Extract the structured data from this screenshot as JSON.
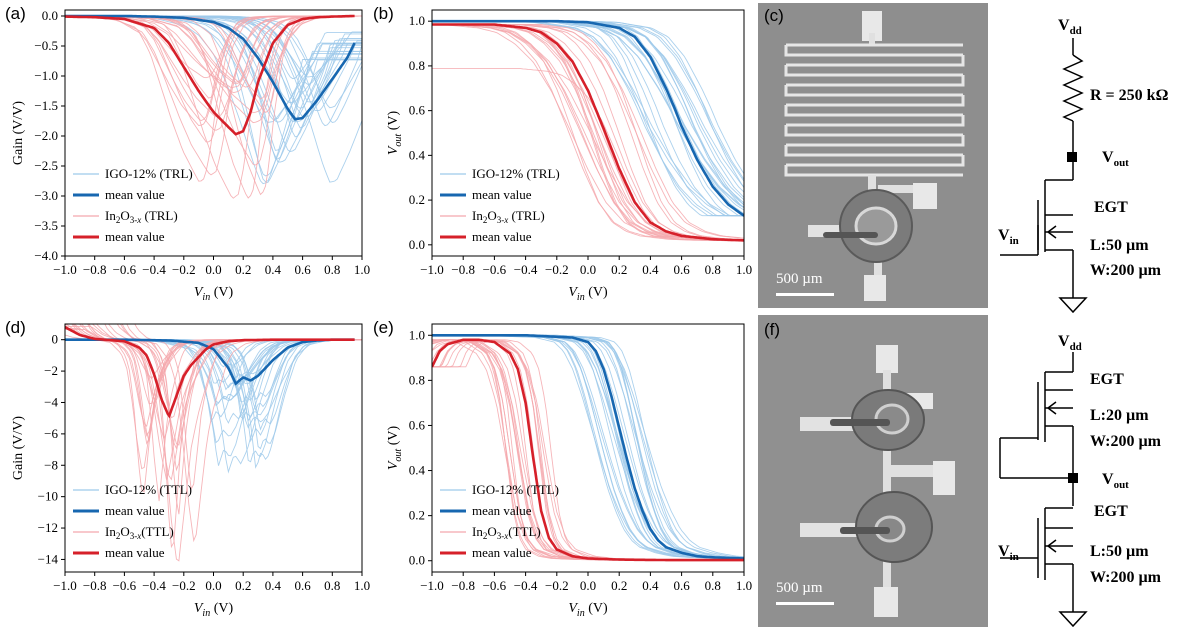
{
  "colors": {
    "trl_blue_thin": "#9ec9ea",
    "blue_mean": "#1767b0",
    "red_thin": "#f4a8ad",
    "red_mean": "#d6202a"
  },
  "panels": {
    "a": {
      "label": "(a)"
    },
    "b": {
      "label": "(b)"
    },
    "c": {
      "label": "(c)",
      "scale": "500 µm"
    },
    "d": {
      "label": "(d)"
    },
    "e": {
      "label": "(e)"
    },
    "f": {
      "label": "(f)",
      "scale": "500 µm"
    }
  },
  "circuit_c": {
    "vdd": "V",
    "vdd_sub": "dd",
    "resistor": "R = 250 kΩ",
    "vout": "V",
    "vout_sub": "out",
    "egt": "EGT",
    "vin": "V",
    "vin_sub": "in",
    "length": "L:50 µm",
    "width": "W:200 µm"
  },
  "circuit_f": {
    "vdd": "V",
    "vdd_sub": "dd",
    "egt_top": "EGT",
    "length_top": "L:20 µm",
    "width_top": "W:200 µm",
    "vout": "V",
    "vout_sub": "out",
    "egt_bottom": "EGT",
    "vin": "V",
    "vin_sub": "in",
    "length_bottom": "L:50 µm",
    "width_bottom": "W:200 µm"
  },
  "chart_data": [
    {
      "id": "a",
      "type": "line",
      "xlabel": "V_in (V)",
      "ylabel": "Gain (V/V)",
      "xlim": [
        -1.0,
        1.0
      ],
      "ylim": [
        -4.0,
        0.1
      ],
      "xticks": [
        -1.0,
        -0.8,
        -0.6,
        -0.4,
        -0.2,
        0.0,
        0.2,
        0.4,
        0.6,
        0.8,
        1.0
      ],
      "yticks": [
        0.0,
        -0.5,
        -1.0,
        -1.5,
        -2.0,
        -2.5,
        -3.0,
        -3.5,
        -4.0
      ],
      "legend": {
        "position": "lower-left",
        "entries": [
          "IGO-12% (TRL)",
          "mean value",
          "In2O3-x (TRL)",
          "mean value"
        ]
      },
      "series": [
        {
          "name": "IGO-12% (TRL)",
          "kind": "mean",
          "x": [
            -1.0,
            -0.8,
            -0.6,
            -0.4,
            -0.2,
            0.0,
            0.1,
            0.2,
            0.3,
            0.4,
            0.5,
            0.55,
            0.6,
            0.7,
            0.8,
            0.9,
            0.95
          ],
          "y": [
            0.0,
            0.0,
            0.0,
            -0.01,
            -0.03,
            -0.1,
            -0.2,
            -0.38,
            -0.7,
            -1.1,
            -1.55,
            -1.72,
            -1.7,
            -1.4,
            -1.05,
            -0.7,
            -0.45
          ]
        },
        {
          "name": "In2O3-x (TRL)",
          "kind": "mean",
          "x": [
            -1.0,
            -0.8,
            -0.6,
            -0.4,
            -0.3,
            -0.2,
            -0.1,
            0.0,
            0.1,
            0.15,
            0.2,
            0.25,
            0.3,
            0.4,
            0.5,
            0.6,
            0.7,
            0.8,
            0.95
          ],
          "y": [
            -0.01,
            -0.02,
            -0.05,
            -0.2,
            -0.45,
            -0.85,
            -1.25,
            -1.6,
            -1.85,
            -1.97,
            -1.92,
            -1.6,
            -1.1,
            -0.45,
            -0.15,
            -0.05,
            -0.02,
            -0.01,
            0.0
          ]
        }
      ]
    },
    {
      "id": "b",
      "type": "line",
      "xlabel": "V_in (V)",
      "ylabel": "V_out (V)",
      "xlim": [
        -1.0,
        1.0
      ],
      "ylim": [
        -0.05,
        1.05
      ],
      "xticks": [
        -1.0,
        -0.8,
        -0.6,
        -0.4,
        -0.2,
        0.0,
        0.2,
        0.4,
        0.6,
        0.8,
        1.0
      ],
      "yticks": [
        0.0,
        0.2,
        0.4,
        0.6,
        0.8,
        1.0
      ],
      "legend": {
        "position": "lower-left",
        "entries": [
          "IGO-12% (TRL)",
          "mean value",
          "In2O3-x (TRL)",
          "mean value"
        ]
      },
      "series": [
        {
          "name": "IGO-12% (TRL)",
          "kind": "mean",
          "x": [
            -1.0,
            -0.6,
            -0.2,
            0.0,
            0.2,
            0.3,
            0.4,
            0.5,
            0.55,
            0.6,
            0.7,
            0.8,
            0.9,
            1.0
          ],
          "y": [
            1.0,
            1.0,
            1.0,
            0.995,
            0.97,
            0.93,
            0.84,
            0.7,
            0.62,
            0.53,
            0.38,
            0.26,
            0.18,
            0.13
          ]
        },
        {
          "name": "In2O3-x (TRL)",
          "kind": "mean",
          "x": [
            -1.0,
            -0.6,
            -0.4,
            -0.3,
            -0.2,
            -0.1,
            0.0,
            0.1,
            0.2,
            0.3,
            0.4,
            0.5,
            0.6,
            0.8,
            1.0
          ],
          "y": [
            0.985,
            0.985,
            0.97,
            0.95,
            0.9,
            0.82,
            0.69,
            0.52,
            0.34,
            0.19,
            0.1,
            0.06,
            0.04,
            0.025,
            0.02
          ]
        }
      ]
    },
    {
      "id": "d",
      "type": "line",
      "xlabel": "V_in (V)",
      "ylabel": "Gain (V/V)",
      "xlim": [
        -1.0,
        1.0
      ],
      "ylim": [
        -14.8,
        1.0
      ],
      "xticks": [
        -1.0,
        -0.8,
        -0.6,
        -0.4,
        -0.2,
        0.0,
        0.2,
        0.4,
        0.6,
        0.8,
        1.0
      ],
      "yticks": [
        0,
        -2,
        -4,
        -6,
        -8,
        -10,
        -12,
        -14
      ],
      "legend": {
        "position": "lower-left",
        "entries": [
          "IGO-12% (TTL)",
          "mean value",
          "In2O3-x(TTL)",
          "mean value"
        ]
      },
      "series": [
        {
          "name": "IGO-12% (TTL)",
          "kind": "mean",
          "x": [
            -1.0,
            -0.6,
            -0.3,
            -0.1,
            0.0,
            0.1,
            0.15,
            0.2,
            0.25,
            0.3,
            0.4,
            0.5,
            0.6,
            0.7,
            0.8,
            0.95
          ],
          "y": [
            0.0,
            0.0,
            -0.05,
            -0.2,
            -0.6,
            -1.8,
            -2.8,
            -2.4,
            -2.6,
            -2.3,
            -1.3,
            -0.5,
            -0.15,
            -0.05,
            0.0,
            0.0
          ]
        },
        {
          "name": "In2O3-x(TTL)",
          "kind": "mean",
          "x": [
            -1.0,
            -0.9,
            -0.8,
            -0.6,
            -0.5,
            -0.45,
            -0.4,
            -0.35,
            -0.3,
            -0.25,
            -0.2,
            -0.15,
            -0.1,
            -0.05,
            0.0,
            0.1,
            0.2,
            0.4,
            0.95
          ],
          "y": [
            0.8,
            0.3,
            0.05,
            -0.1,
            -0.5,
            -1.0,
            -2.2,
            -3.8,
            -4.9,
            -3.6,
            -2.3,
            -1.6,
            -1.1,
            -0.6,
            -0.3,
            -0.1,
            -0.03,
            0.0,
            0.0
          ]
        }
      ]
    },
    {
      "id": "e",
      "type": "line",
      "xlabel": "V_in (V)",
      "ylabel": "V_out (V)",
      "xlim": [
        -1.0,
        1.0
      ],
      "ylim": [
        -0.05,
        1.05
      ],
      "xticks": [
        -1.0,
        -0.8,
        -0.6,
        -0.4,
        -0.2,
        0.0,
        0.2,
        0.4,
        0.6,
        0.8,
        1.0
      ],
      "yticks": [
        0.0,
        0.2,
        0.4,
        0.6,
        0.8,
        1.0
      ],
      "legend": {
        "position": "lower-left",
        "entries": [
          "IGO-12% (TTL)",
          "mean value",
          "In2O3-x(TTL)",
          "mean value"
        ]
      },
      "series": [
        {
          "name": "IGO-12% (TTL)",
          "kind": "mean",
          "x": [
            -1.0,
            -0.4,
            -0.1,
            0.0,
            0.05,
            0.1,
            0.15,
            0.2,
            0.25,
            0.3,
            0.35,
            0.4,
            0.45,
            0.5,
            0.6,
            0.7,
            0.8,
            1.0
          ],
          "y": [
            1.0,
            1.0,
            0.99,
            0.97,
            0.93,
            0.85,
            0.73,
            0.59,
            0.45,
            0.32,
            0.22,
            0.14,
            0.09,
            0.06,
            0.035,
            0.02,
            0.015,
            0.01
          ]
        },
        {
          "name": "In2O3-x(TTL)",
          "kind": "mean",
          "x": [
            -1.0,
            -0.95,
            -0.9,
            -0.8,
            -0.7,
            -0.6,
            -0.5,
            -0.45,
            -0.4,
            -0.35,
            -0.3,
            -0.25,
            -0.2,
            -0.1,
            0.0,
            0.2,
            0.5,
            1.0
          ],
          "y": [
            0.86,
            0.93,
            0.96,
            0.98,
            0.98,
            0.97,
            0.92,
            0.85,
            0.7,
            0.45,
            0.22,
            0.1,
            0.05,
            0.02,
            0.01,
            0.005,
            0.003,
            0.003
          ]
        }
      ]
    }
  ]
}
